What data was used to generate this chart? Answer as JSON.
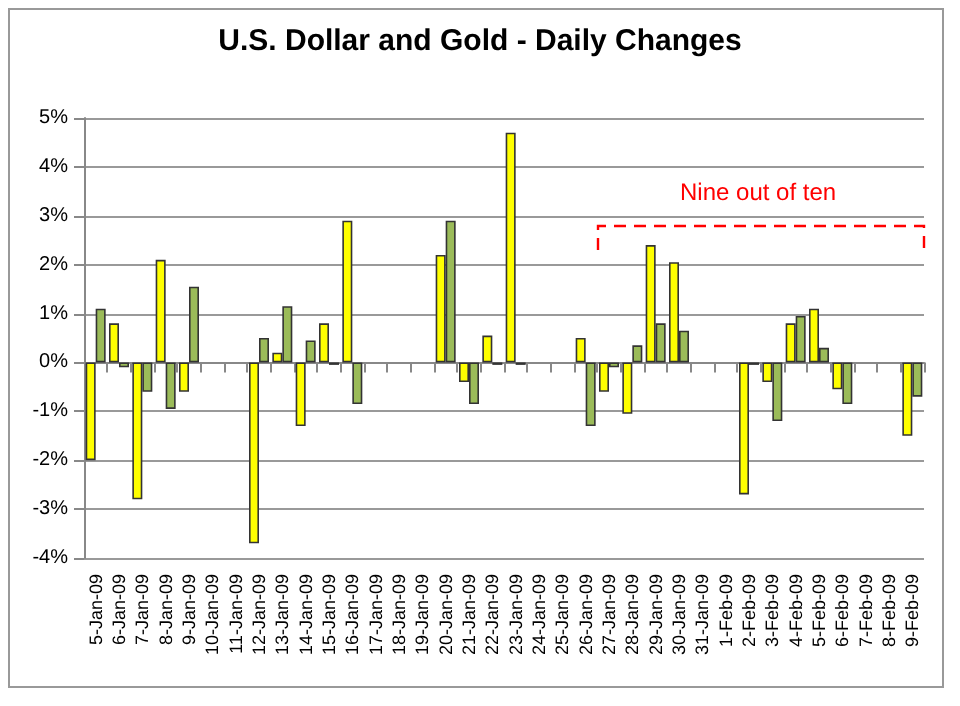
{
  "chart_data": {
    "type": "bar",
    "title": "U.S. Dollar and Gold - Daily Changes",
    "categories": [
      "5-Jan-09",
      "6-Jan-09",
      "7-Jan-09",
      "8-Jan-09",
      "9-Jan-09",
      "10-Jan-09",
      "11-Jan-09",
      "12-Jan-09",
      "13-Jan-09",
      "14-Jan-09",
      "15-Jan-09",
      "16-Jan-09",
      "17-Jan-09",
      "18-Jan-09",
      "19-Jan-09",
      "20-Jan-09",
      "21-Jan-09",
      "22-Jan-09",
      "23-Jan-09",
      "24-Jan-09",
      "25-Jan-09",
      "26-Jan-09",
      "27-Jan-09",
      "28-Jan-09",
      "29-Jan-09",
      "30-Jan-09",
      "31-Jan-09",
      "1-Feb-09",
      "2-Feb-09",
      "3-Feb-09",
      "4-Feb-09",
      "5-Feb-09",
      "6-Feb-09",
      "7-Feb-09",
      "8-Feb-09",
      "9-Feb-09"
    ],
    "series": [
      {
        "color": "#ffff00",
        "values": [
          -2.0,
          0.8,
          -2.8,
          2.1,
          -0.6,
          null,
          null,
          -3.7,
          0.2,
          -1.3,
          0.8,
          2.9,
          null,
          null,
          null,
          2.2,
          -0.4,
          0.55,
          4.7,
          null,
          null,
          0.5,
          -0.6,
          -1.05,
          2.4,
          2.05,
          null,
          null,
          -2.7,
          -0.4,
          0.8,
          1.1,
          -0.55,
          null,
          null,
          -1.5
        ]
      },
      {
        "color": "#9bbb59",
        "values": [
          1.1,
          -0.1,
          -0.6,
          -0.95,
          1.55,
          null,
          null,
          0.5,
          1.15,
          0.45,
          -0.05,
          -0.85,
          null,
          null,
          null,
          2.9,
          -0.85,
          -0.05,
          -0.05,
          null,
          null,
          -1.3,
          -0.1,
          0.35,
          0.8,
          0.65,
          null,
          null,
          -0.05,
          -1.2,
          0.95,
          0.3,
          -0.85,
          null,
          null,
          -0.7
        ]
      }
    ],
    "ylim": [
      -4,
      5
    ],
    "yticks": [
      {
        "value": -4,
        "label": "-4%"
      },
      {
        "value": -3,
        "label": "-3%"
      },
      {
        "value": -2,
        "label": "-2%"
      },
      {
        "value": -1,
        "label": "-1%"
      },
      {
        "value": 0,
        "label": "0%"
      },
      {
        "value": 1,
        "label": "1%"
      },
      {
        "value": 2,
        "label": "2%"
      },
      {
        "value": 3,
        "label": "3%"
      },
      {
        "value": 4,
        "label": "4%"
      },
      {
        "value": 5,
        "label": "5%"
      }
    ],
    "grid": "y",
    "annotations": [
      "Nine out of ten"
    ]
  }
}
